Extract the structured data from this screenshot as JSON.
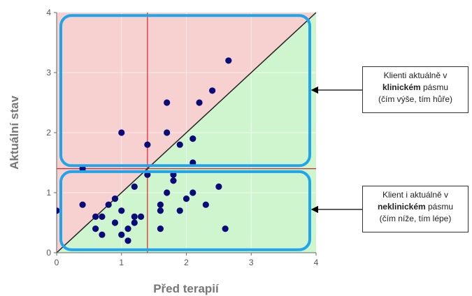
{
  "chart_data": {
    "type": "scatter",
    "xlabel": "Před terapií",
    "ylabel": "Aktuální stav",
    "xlim": [
      0,
      4
    ],
    "ylim": [
      0,
      4
    ],
    "xticks": [
      "0",
      "1",
      "2",
      "3",
      "4"
    ],
    "yticks": [
      "0",
      "1",
      "2",
      "3",
      "4"
    ],
    "grid": true,
    "diagonal": {
      "from": [
        0,
        0
      ],
      "to": [
        4,
        4
      ]
    },
    "reference_lines": {
      "x": 1.4,
      "y": 1.4
    },
    "regions": {
      "above_diagonal_color": "#f7d0d0",
      "below_diagonal_color": "#cff5cf"
    },
    "highlight_boxes": [
      {
        "x_range": [
          0,
          4
        ],
        "y_range": [
          1.45,
          3.95
        ],
        "color": "#1ea5ea"
      },
      {
        "x_range": [
          0,
          4
        ],
        "y_range": [
          0.05,
          1.35
        ],
        "color": "#1ea5ea"
      }
    ],
    "point_color": "#0a0a78",
    "points": [
      [
        0.0,
        0.7
      ],
      [
        0.4,
        1.4
      ],
      [
        0.4,
        0.8
      ],
      [
        0.6,
        0.6
      ],
      [
        0.6,
        0.4
      ],
      [
        0.7,
        0.6
      ],
      [
        0.7,
        0.3
      ],
      [
        0.8,
        0.8
      ],
      [
        0.9,
        0.9
      ],
      [
        0.9,
        0.5
      ],
      [
        1.0,
        2.0
      ],
      [
        1.0,
        0.7
      ],
      [
        1.0,
        0.3
      ],
      [
        1.1,
        0.4
      ],
      [
        1.1,
        0.2
      ],
      [
        1.2,
        1.1
      ],
      [
        1.2,
        0.6
      ],
      [
        1.2,
        0.5
      ],
      [
        1.3,
        0.6
      ],
      [
        1.4,
        1.8
      ],
      [
        1.4,
        1.3
      ],
      [
        1.6,
        0.8
      ],
      [
        1.6,
        0.7
      ],
      [
        1.6,
        0.4
      ],
      [
        1.7,
        2.5
      ],
      [
        1.7,
        2.0
      ],
      [
        1.7,
        1.0
      ],
      [
        1.8,
        1.3
      ],
      [
        1.8,
        1.2
      ],
      [
        1.9,
        1.8
      ],
      [
        1.9,
        0.7
      ],
      [
        2.0,
        0.9
      ],
      [
        2.1,
        1.9
      ],
      [
        2.1,
        1.5
      ],
      [
        2.1,
        1.0
      ],
      [
        2.2,
        2.5
      ],
      [
        2.3,
        0.8
      ],
      [
        2.4,
        2.7
      ],
      [
        2.5,
        1.1
      ],
      [
        2.6,
        0.4
      ],
      [
        2.65,
        3.2
      ]
    ]
  },
  "annotations": {
    "upper": {
      "line1": "Klienti aktuálně v",
      "bold": "klinickém",
      "after_bold": " pásmu",
      "line3": "(čím výše, tím hůře)"
    },
    "lower": {
      "line1": "Klient i aktuálně v",
      "bold": "neklinickém",
      "after_bold": " pásmu",
      "line3": "(čím níže, tím lépe)"
    }
  }
}
